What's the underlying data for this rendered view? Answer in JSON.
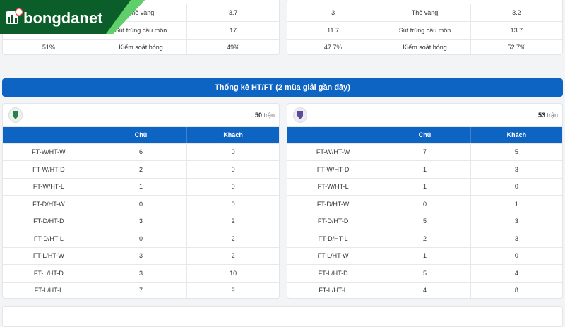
{
  "logo": {
    "text": "bongdanet",
    "color": "#0b5e2a"
  },
  "top_stats": {
    "left": [
      {
        "home": "",
        "label": "Thẻ vàng",
        "away": "3.7"
      },
      {
        "home": "",
        "label": "Sút trúng cầu môn",
        "away": "17"
      },
      {
        "home": "51%",
        "label": "Kiểm soát bóng",
        "away": "49%"
      }
    ],
    "right": [
      {
        "home": "3",
        "label": "Thẻ vàng",
        "away": "3.2"
      },
      {
        "home": "11.7",
        "label": "Sút trúng cầu môn",
        "away": "13.7"
      },
      {
        "home": "47.7%",
        "label": "Kiểm soát bóng",
        "away": "52.7%"
      }
    ]
  },
  "htft": {
    "title": "Thống kê HT/FT (2 mùa giải gần đây)",
    "accent": "#0e64c3",
    "columns": [
      "",
      "Chủ",
      "Khách"
    ],
    "teams": [
      {
        "matches": "50",
        "matches_unit": "trận",
        "crest_icon": "team-crest-green",
        "rows": [
          [
            "FT-W/HT-W",
            "6",
            "0"
          ],
          [
            "FT-W/HT-D",
            "2",
            "0"
          ],
          [
            "FT-W/HT-L",
            "1",
            "0"
          ],
          [
            "FT-D/HT-W",
            "0",
            "0"
          ],
          [
            "FT-D/HT-D",
            "3",
            "2"
          ],
          [
            "FT-D/HT-L",
            "0",
            "2"
          ],
          [
            "FT-L/HT-W",
            "3",
            "2"
          ],
          [
            "FT-L/HT-D",
            "3",
            "10"
          ],
          [
            "FT-L/HT-L",
            "7",
            "9"
          ]
        ]
      },
      {
        "matches": "53",
        "matches_unit": "trận",
        "crest_icon": "team-crest-purple",
        "rows": [
          [
            "FT-W/HT-W",
            "7",
            "5"
          ],
          [
            "FT-W/HT-D",
            "1",
            "3"
          ],
          [
            "FT-W/HT-L",
            "1",
            "0"
          ],
          [
            "FT-D/HT-W",
            "0",
            "1"
          ],
          [
            "FT-D/HT-D",
            "5",
            "3"
          ],
          [
            "FT-D/HT-L",
            "2",
            "3"
          ],
          [
            "FT-L/HT-W",
            "1",
            "0"
          ],
          [
            "FT-L/HT-D",
            "5",
            "4"
          ],
          [
            "FT-L/HT-L",
            "4",
            "8"
          ]
        ]
      }
    ]
  }
}
